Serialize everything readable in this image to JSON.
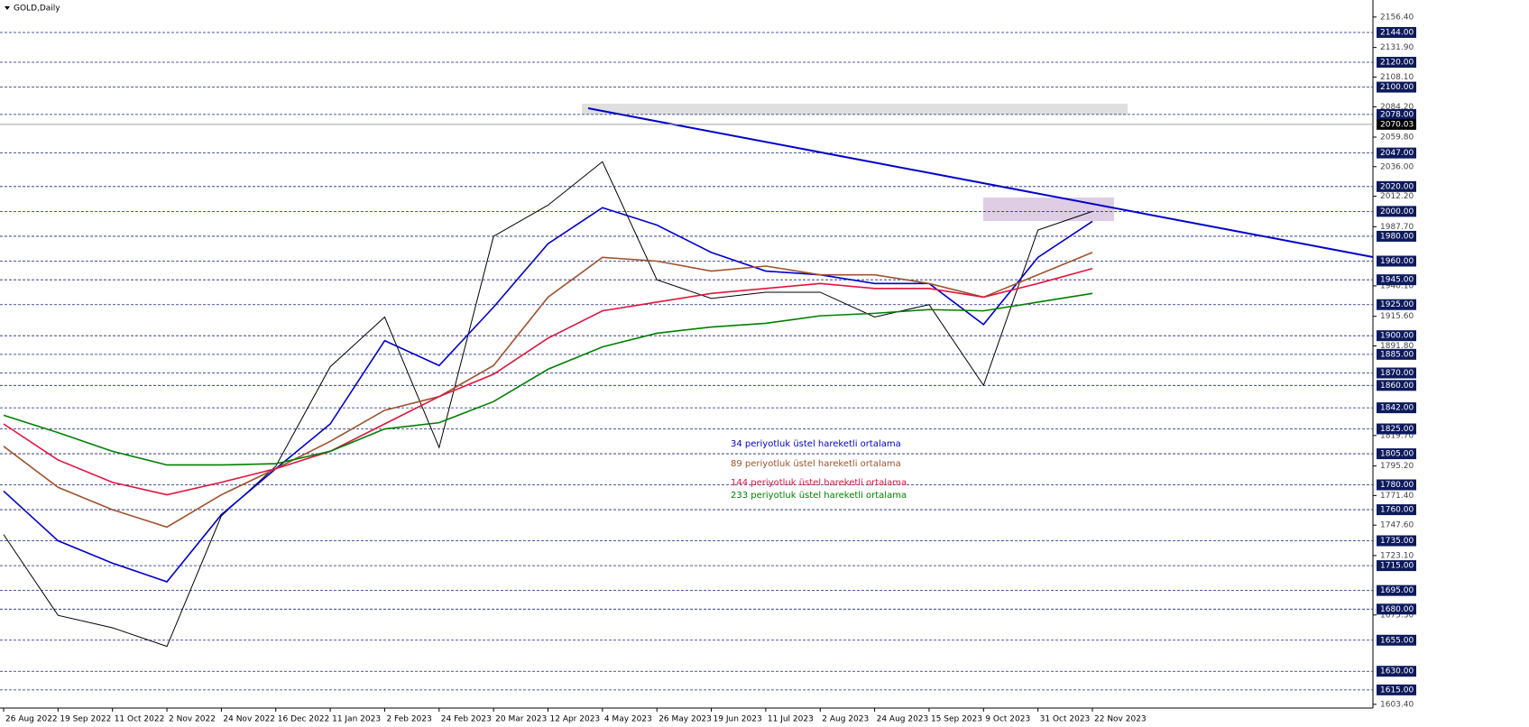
{
  "chart_data": {
    "type": "line",
    "title": "GOLD,Daily",
    "categories": [
      "26 Aug 2022",
      "19 Sep 2022",
      "11 Oct 2022",
      "2 Nov 2022",
      "24 Nov 2022",
      "16 Dec 2022",
      "11 Jan 2023",
      "2 Feb 2023",
      "24 Feb 2023",
      "20 Mar 2023",
      "12 Apr 2023",
      "4 May 2023",
      "26 May 2023",
      "19 Jun 2023",
      "11 Jul 2023",
      "2 Aug 2023",
      "24 Aug 2023",
      "15 Sep 2023",
      "9 Oct 2023",
      "31 Oct 2023",
      "22 Nov 2023"
    ],
    "price": {
      "color": "#000000",
      "values": [
        1740,
        1675,
        1665,
        1650,
        1755,
        1795,
        1875,
        1915,
        1810,
        1980,
        2005,
        2040,
        1945,
        1930,
        1935,
        1935,
        1915,
        1925,
        1860,
        1985,
        2000
      ]
    },
    "series": [
      {
        "name": "34 periyotluk üstel hareketli ortalama",
        "color": "#0000cc",
        "values": [
          1775,
          1735,
          1717,
          1702,
          1756,
          1793,
          1829,
          1896,
          1876,
          1923,
          1974,
          2003,
          1989,
          1967,
          1952,
          1949,
          1942,
          1942,
          1909,
          1963,
          1992
        ]
      },
      {
        "name": "89 periyotluk üstel hareketli ortalama",
        "color": "#a0522d",
        "values": [
          1811,
          1778,
          1760,
          1746,
          1772,
          1793,
          1815,
          1840,
          1851,
          1876,
          1931,
          1963,
          1960,
          1952,
          1956,
          1949,
          1949,
          1942,
          1931,
          1949,
          1967
        ]
      },
      {
        "name": "144 periyotluk üstel hareketli ortalama",
        "color": "#e0143c",
        "values": [
          1829,
          1800,
          1782,
          1772,
          1782,
          1793,
          1807,
          1829,
          1851,
          1869,
          1898,
          1920,
          1927,
          1934,
          1938,
          1942,
          1938,
          1938,
          1931,
          1942,
          1954
        ]
      },
      {
        "name": "233 periyotluk üstel hareketli ortalama",
        "color": "#008000",
        "values": [
          1836,
          1822,
          1807,
          1796,
          1796,
          1797,
          1807,
          1825,
          1830,
          1847,
          1873,
          1891,
          1902,
          1907,
          1910,
          1916,
          1918,
          1921,
          1920,
          1927,
          1934
        ]
      }
    ],
    "ylim": [
      1600.4,
      2170.1
    ],
    "yticks": [
      {
        "value": 2156.4,
        "label": "2156.40"
      },
      {
        "value": 2131.9,
        "label": "2131.90"
      },
      {
        "value": 2108.1,
        "label": "2108.10"
      },
      {
        "value": 2084.2,
        "label": "2084.20"
      },
      {
        "value": 2059.8,
        "label": "2059.80"
      },
      {
        "value": 2036,
        "label": "2036.00"
      },
      {
        "value": 2012.2,
        "label": "2012.20"
      },
      {
        "value": 1987.7,
        "label": "1987.70"
      },
      {
        "value": 1940.1,
        "label": "1940.10"
      },
      {
        "value": 1915.6,
        "label": "1915.60"
      },
      {
        "value": 1891.8,
        "label": "1891.80"
      },
      {
        "value": 1819.7,
        "label": "1819.70"
      },
      {
        "value": 1795.2,
        "label": "1795.20"
      },
      {
        "value": 1771.4,
        "label": "1771.40"
      },
      {
        "value": 1747.6,
        "label": "1747.60"
      },
      {
        "value": 1723.1,
        "label": "1723.10"
      },
      {
        "value": 1675.3,
        "label": "1675.30"
      },
      {
        "value": 1603.4,
        "label": "1603.40"
      }
    ],
    "levels": [
      {
        "value": 2144,
        "label": "2144.00"
      },
      {
        "value": 2120,
        "label": "2120.00"
      },
      {
        "value": 2100,
        "label": "2100.00"
      },
      {
        "value": 2078,
        "label": "2078.00"
      },
      {
        "value": 2047,
        "label": "2047.00"
      },
      {
        "value": 2020,
        "label": "2020.00"
      },
      {
        "value": 2000,
        "label": "2000.00"
      },
      {
        "value": 1980,
        "label": "1980.00"
      },
      {
        "value": 1960,
        "label": "1960.00"
      },
      {
        "value": 1945,
        "label": "1945.00"
      },
      {
        "value": 1925,
        "label": "1925.00"
      },
      {
        "value": 1900,
        "label": "1900.00"
      },
      {
        "value": 1885,
        "label": "1885.00"
      },
      {
        "value": 1870,
        "label": "1870.00"
      },
      {
        "value": 1860,
        "label": "1860.00"
      },
      {
        "value": 1842,
        "label": "1842.00"
      },
      {
        "value": 1825,
        "label": "1825.00"
      },
      {
        "value": 1805,
        "label": "1805.00"
      },
      {
        "value": 1780,
        "label": "1780.00"
      },
      {
        "value": 1760,
        "label": "1760.00"
      },
      {
        "value": 1735,
        "label": "1735.00"
      },
      {
        "value": 1715,
        "label": "1715.00"
      },
      {
        "value": 1695,
        "label": "1695.00"
      },
      {
        "value": 1680,
        "label": "1680.00"
      },
      {
        "value": 1655,
        "label": "1655.00"
      },
      {
        "value": 1630,
        "label": "1630.00"
      },
      {
        "value": 1615,
        "label": "1615.00"
      }
    ],
    "last_price": {
      "value": 2070.03,
      "label": "2070.03"
    }
  }
}
